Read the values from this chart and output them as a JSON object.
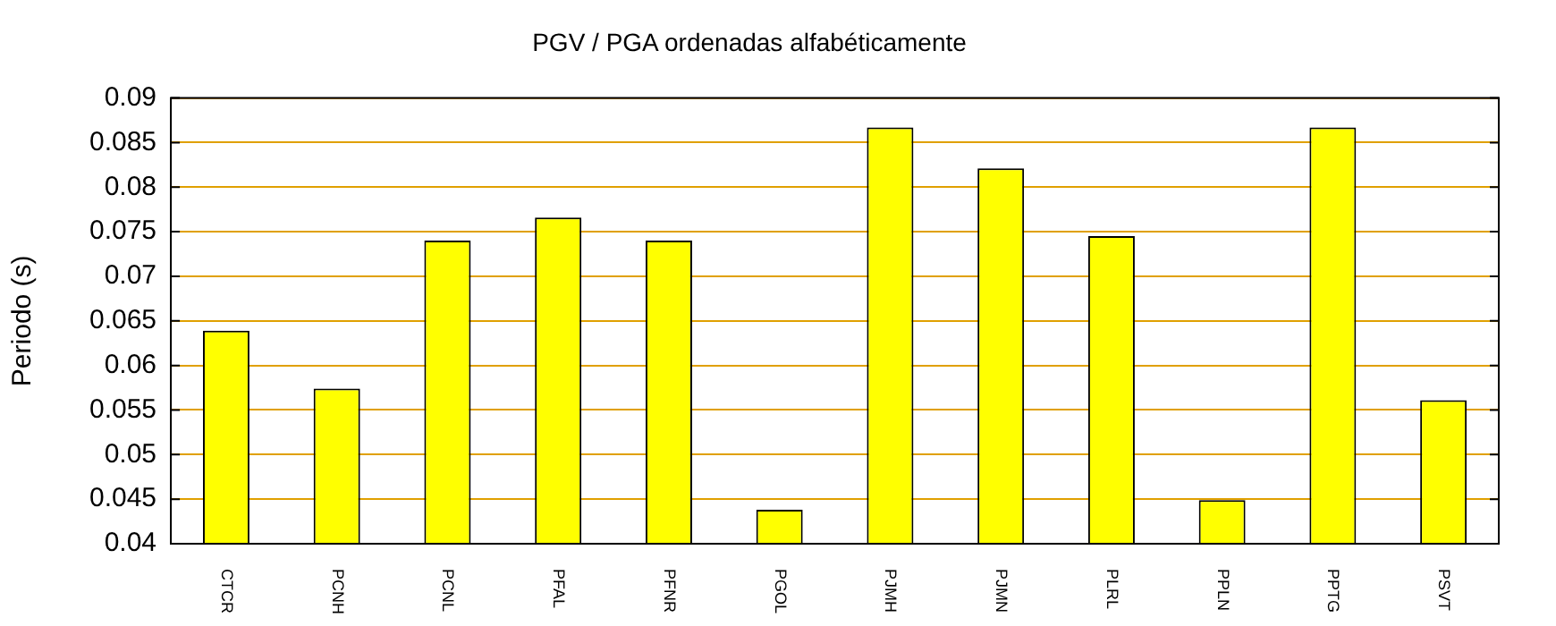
{
  "chart_data": {
    "type": "bar",
    "title": "PGV / PGA ordenadas alfabéticamente",
    "ylabel": "Periodo (s)",
    "categories": [
      "CTCR",
      "PCNH",
      "PCNL",
      "PFAL",
      "PFNR",
      "PGOL",
      "PJMH",
      "PJMN",
      "PLRL",
      "PPLN",
      "PPTG",
      "PSVT"
    ],
    "values": [
      0.0639,
      0.0574,
      0.074,
      0.0766,
      0.074,
      0.0438,
      0.0867,
      0.0821,
      0.0745,
      0.0449,
      0.0867,
      0.0561
    ],
    "color": "#ffff00",
    "ylim": [
      0.04,
      0.09
    ],
    "yticks": [
      0.04,
      0.045,
      0.05,
      0.055,
      0.06,
      0.065,
      0.07,
      0.075,
      0.08,
      0.085,
      0.09
    ],
    "grid": "y",
    "legend": false
  }
}
